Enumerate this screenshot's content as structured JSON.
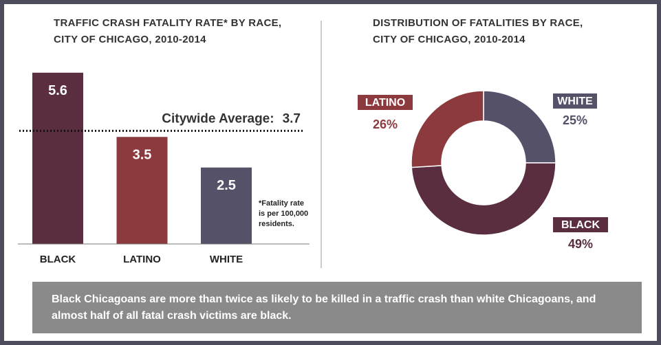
{
  "chart_data": [
    {
      "type": "bar",
      "title": "TRAFFIC CRASH FATALITY RATE* BY RACE, CITY OF CHICAGO, 2010-2014",
      "categories": [
        "BLACK",
        "LATINO",
        "WHITE"
      ],
      "values": [
        5.6,
        3.5,
        2.5
      ],
      "colors": [
        "#5a2e40",
        "#8c3a3d",
        "#545168"
      ],
      "average_label": "Citywide Average:",
      "average": 3.7,
      "note": "*Fatality rate is per 100,000 residents."
    },
    {
      "type": "pie",
      "title": "DISTRIBUTION OF FATALITIES BY RACE, CITY OF CHICAGO, 2010-2014",
      "categories": [
        "WHITE",
        "BLACK",
        "LATINO"
      ],
      "values": [
        25,
        49,
        26
      ],
      "value_labels": [
        "25%",
        "49%",
        "26%"
      ],
      "colors": [
        "#545168",
        "#5a2e40",
        "#8c3a3d"
      ]
    }
  ],
  "callout": "Black Chicagoans are more than twice as likely to be killed in a traffic crash than white Chicagoans, and almost half of all fatal crash victims are black."
}
